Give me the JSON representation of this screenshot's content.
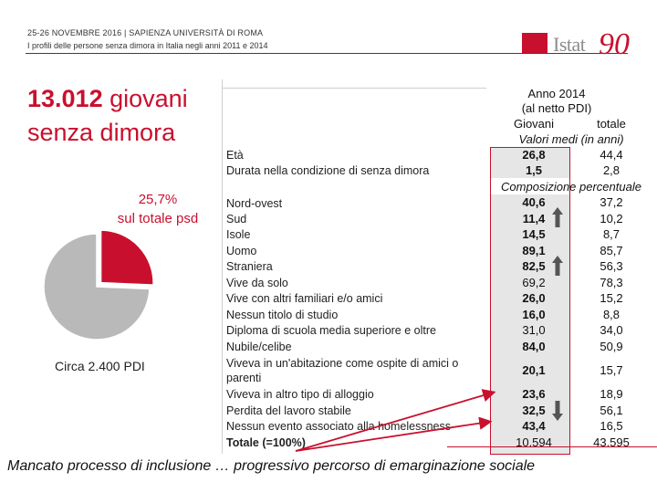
{
  "header": {
    "event": "25-26 NOVEMBRE 2016 | SAPIENZA UNIVERSITÀ DI ROMA",
    "subtitle": "I profili delle persone senza dimora in Italia negli anni 2011 e 2014"
  },
  "logo": {
    "word": "Istat",
    "anniversary": "90"
  },
  "title": {
    "number": "13.012",
    "rest1": "giovani",
    "rest2": "senza dimora"
  },
  "pie": {
    "share_percent": 25.7,
    "label1": "25,7%",
    "label2": "sul totale psd",
    "other_label": "Circa 2.400 PDI",
    "colors": {
      "highlight": "#c8102e",
      "rest": "#b9b9b9"
    }
  },
  "table": {
    "year": "Anno 2014",
    "note": "(al netto PDI)",
    "col_giovani": "Giovani",
    "col_totale": "totale",
    "section_means": "Valori medi (in anni)",
    "section_pct": "Composizione percentuale",
    "rows": [
      {
        "label": "Età",
        "giovani": "26,8",
        "totale": "44,4"
      },
      {
        "label": "Durata nella condizione di senza dimora",
        "giovani": "1,5",
        "totale": "2,8"
      },
      {
        "label": "Nord-ovest",
        "giovani": "40,6",
        "totale": "37,2"
      },
      {
        "label": "Sud",
        "giovani": "11,4",
        "totale": "10,2"
      },
      {
        "label": "Isole",
        "giovani": "14,5",
        "totale": "8,7"
      },
      {
        "label": "Uomo",
        "giovani": "89,1",
        "totale": "85,7"
      },
      {
        "label": "Straniera",
        "giovani": "82,5",
        "totale": "56,3"
      },
      {
        "label": "Vive da solo",
        "giovani": "69,2",
        "totale": "78,3"
      },
      {
        "label": "Vive con altri familiari e/o amici",
        "giovani": "26,0",
        "totale": "15,2"
      },
      {
        "label": "Nessun titolo di studio",
        "giovani": "16,0",
        "totale": "8,8"
      },
      {
        "label": "Diploma di scuola media superiore e oltre",
        "giovani": "31,0",
        "totale": "34,0"
      },
      {
        "label": "Nubile/celibe",
        "giovani": "84,0",
        "totale": "50,9"
      },
      {
        "label": "Viveva in un'abitazione come ospite di amici o",
        "label2": "parenti",
        "giovani": "20,1",
        "totale": "15,7"
      },
      {
        "label": "Viveva in altro tipo di alloggio",
        "giovani": "23,6",
        "totale": "18,9"
      },
      {
        "label": "Perdita del lavoro stabile",
        "giovani": "32,5",
        "totale": "56,1"
      },
      {
        "label": "Nessun evento associato alla homelessness",
        "giovani": "43,4",
        "totale": "16,5"
      },
      {
        "label": "Totale (=100%)",
        "giovani": "10.594",
        "totale": "43.595"
      }
    ]
  },
  "conclusion": "Mancato processo di inclusione … progressivo percorso di emarginazione sociale"
}
